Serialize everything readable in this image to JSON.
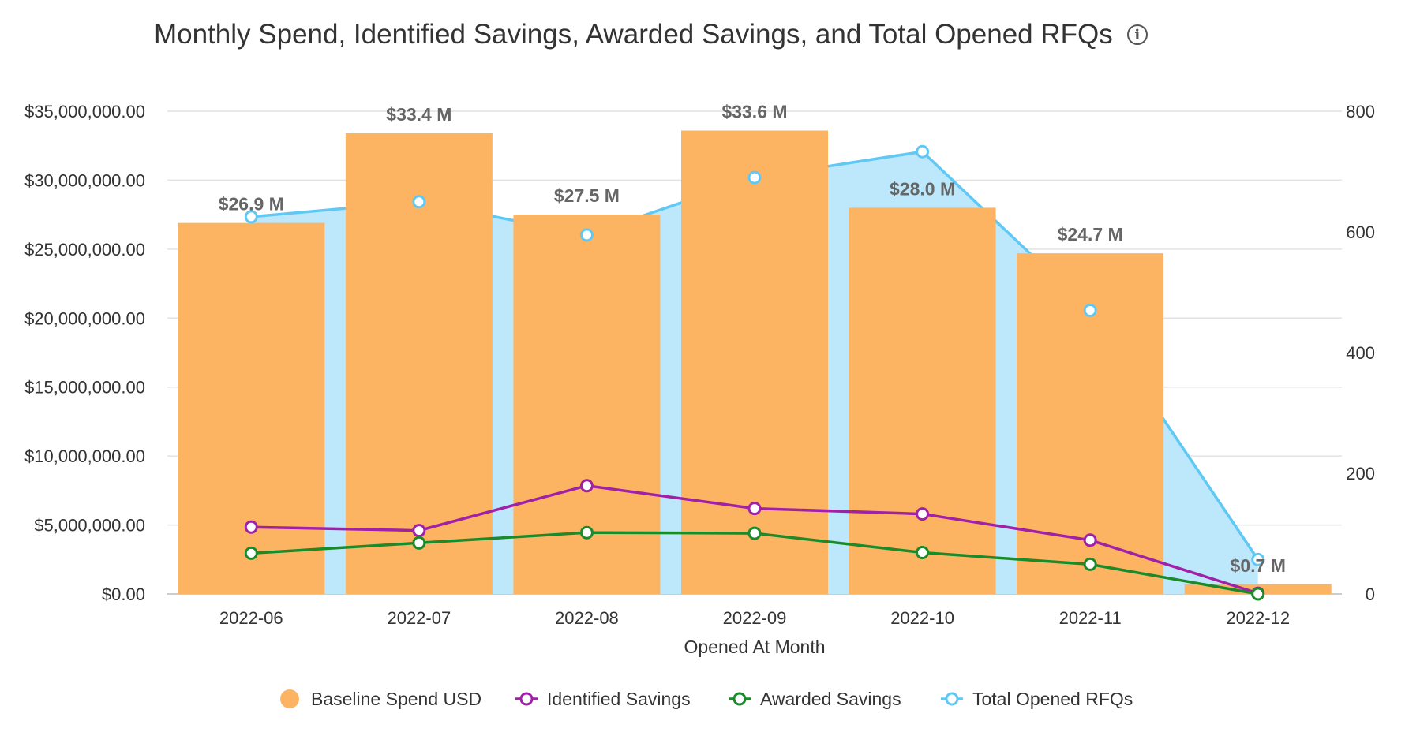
{
  "chart_data": {
    "title": "Monthly Spend, Identified Savings, Awarded Savings, and Total Opened RFQs",
    "xlabel": "Opened At Month",
    "categories": [
      "2022-06",
      "2022-07",
      "2022-08",
      "2022-09",
      "2022-10",
      "2022-11",
      "2022-12"
    ],
    "y_left": {
      "ylim": [
        0,
        35000000
      ],
      "ticks": [
        0,
        5000000,
        10000000,
        15000000,
        20000000,
        25000000,
        30000000,
        35000000
      ],
      "tick_labels": [
        "$0.00",
        "$5,000,000.00",
        "$10,000,000.00",
        "$15,000,000.00",
        "$20,000,000.00",
        "$25,000,000.00",
        "$30,000,000.00",
        "$35,000,000.00"
      ]
    },
    "y_right": {
      "ylim": [
        0,
        800
      ],
      "ticks": [
        0,
        200,
        400,
        600,
        800
      ],
      "tick_labels": [
        "0",
        "200",
        "400",
        "600",
        "800"
      ]
    },
    "series": [
      {
        "name": "Baseline Spend USD",
        "type": "bar",
        "axis": "left",
        "color": "#fdb462",
        "values": [
          26900000,
          33400000,
          27500000,
          33600000,
          28000000,
          24700000,
          700000
        ],
        "data_labels": [
          "$26.9 M",
          "$33.4 M",
          "$27.5 M",
          "$33.6 M",
          "$28.0 M",
          "$24.7 M",
          "$0.7 M"
        ]
      },
      {
        "name": "Identified Savings",
        "type": "line",
        "axis": "left",
        "color": "#a020a8",
        "values": [
          4850000,
          4600000,
          7850000,
          6200000,
          5800000,
          3900000,
          50000
        ]
      },
      {
        "name": "Awarded Savings",
        "type": "line",
        "axis": "left",
        "color": "#1a8a2a",
        "values": [
          2950000,
          3700000,
          4450000,
          4400000,
          3000000,
          2150000,
          0
        ]
      },
      {
        "name": "Total Opened RFQs",
        "type": "area",
        "axis": "right",
        "color": "#5fc8f5",
        "fill": "#bde8fb",
        "values": [
          625,
          650,
          595,
          690,
          733,
          470,
          57
        ]
      }
    ],
    "grid": true,
    "legend_position": "bottom"
  }
}
